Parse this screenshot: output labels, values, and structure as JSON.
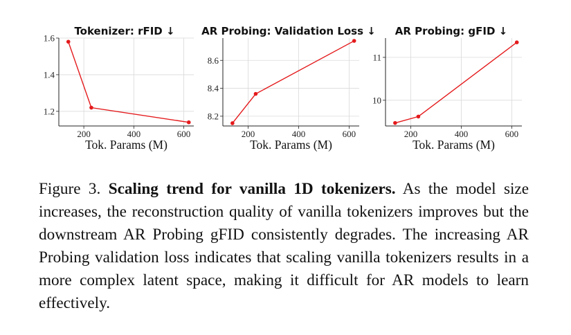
{
  "chart_data": [
    {
      "type": "line",
      "title": "Tokenizer: rFID ↓",
      "xlabel": "Tok. Params (M)",
      "ylabel": "",
      "x": [
        138,
        230,
        620
      ],
      "series": [
        {
          "values": [
            1.58,
            1.22,
            1.14
          ]
        }
      ],
      "xlim": [
        100,
        640
      ],
      "ylim": [
        1.12,
        1.6
      ],
      "xticks": [
        "200",
        "400",
        "600"
      ],
      "yticks": [
        "1.2",
        "1.4",
        "1.6"
      ],
      "grid": true,
      "color": "#e41a1c"
    },
    {
      "type": "line",
      "title": "AR Probing: Validation Loss ↓",
      "xlabel": "Tok. Params (M)",
      "ylabel": "",
      "x": [
        138,
        230,
        620
      ],
      "series": [
        {
          "values": [
            8.15,
            8.36,
            8.74
          ]
        }
      ],
      "xlim": [
        100,
        640
      ],
      "ylim": [
        8.13,
        8.76
      ],
      "xticks": [
        "200",
        "400",
        "600"
      ],
      "yticks": [
        "8.2",
        "8.4",
        "8.6"
      ],
      "grid": true,
      "color": "#e41a1c"
    },
    {
      "type": "line",
      "title": "AR Probing: gFID ↓",
      "xlabel": "Tok. Params (M)",
      "ylabel": "",
      "x": [
        138,
        230,
        620
      ],
      "series": [
        {
          "values": [
            9.47,
            9.62,
            11.35
          ]
        }
      ],
      "xlim": [
        100,
        640
      ],
      "ylim": [
        9.4,
        11.45
      ],
      "xticks": [
        "200",
        "400",
        "600"
      ],
      "yticks": [
        "10",
        "11"
      ],
      "grid": true,
      "color": "#e41a1c"
    }
  ],
  "caption": {
    "label": "Figure 3.",
    "bold": "Scaling trend for vanilla 1D tokenizers.",
    "text": "As the model size increases, the reconstruction quality of vanilla tokenizers improves but the downstream AR Probing gFID consistently degrades. The increasing AR Probing validation loss indicates that scaling vanilla tokenizers results in a more complex latent space, making it difficult for AR models to learn effectively."
  }
}
